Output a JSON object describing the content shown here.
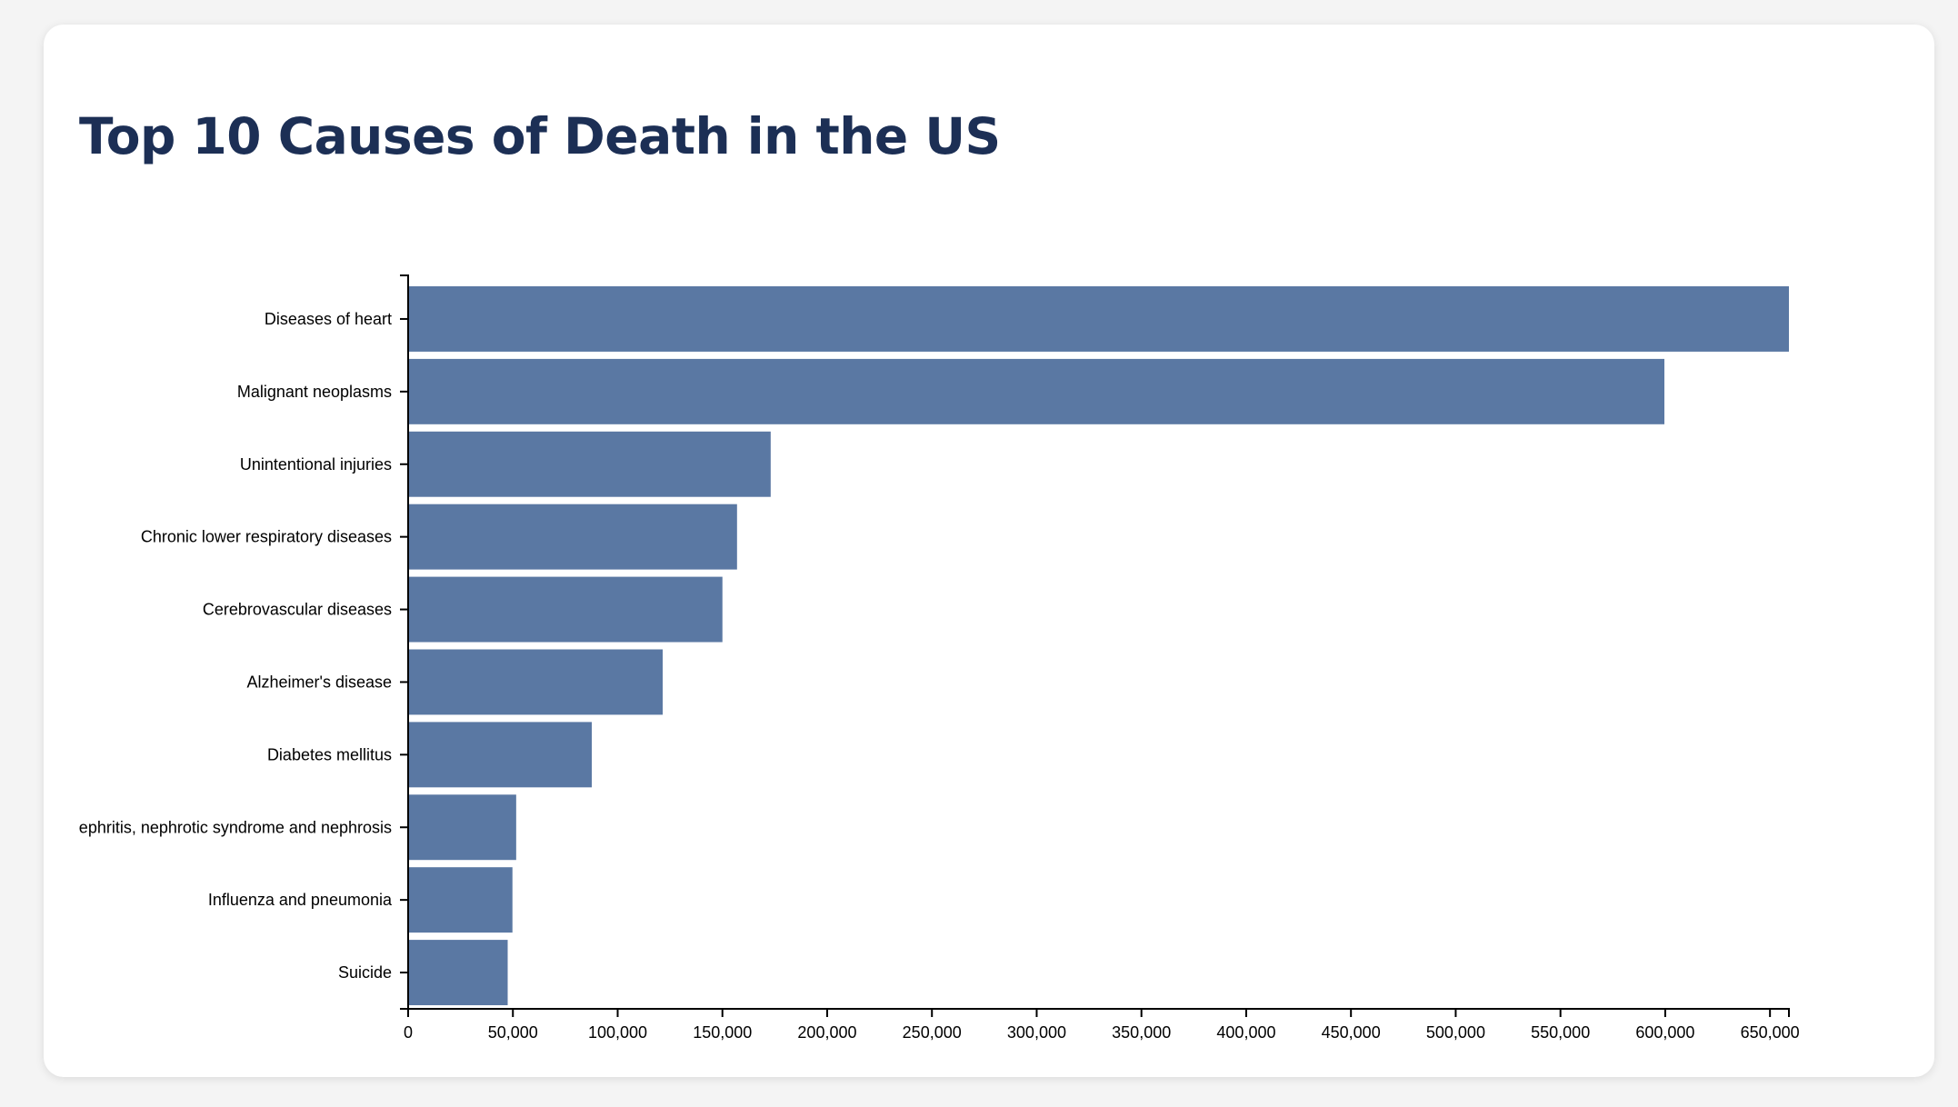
{
  "page": {
    "title": "Top 10 Causes of Death in the US"
  },
  "colors": {
    "bar": "#5a78a3",
    "title": "#1c2f55",
    "axis": "#000000"
  },
  "chart_data": {
    "type": "bar",
    "orientation": "horizontal",
    "title": "Top 10 Causes of Death in the US",
    "xlabel": "",
    "ylabel": "",
    "categories": [
      "Diseases of heart",
      "Malignant neoplasms",
      "Unintentional injuries",
      "Chronic lower respiratory diseases",
      "Cerebrovascular diseases",
      "Alzheimer's disease",
      "Diabetes mellitus",
      "Nephritis, nephrotic syndrome and nephrosis",
      "Influenza and pneumonia",
      "Suicide"
    ],
    "values": [
      659041,
      599601,
      173040,
      156979,
      150005,
      121499,
      87647,
      51565,
      49783,
      47511
    ],
    "xlim": [
      0,
      659041
    ],
    "x_ticks": [
      0,
      50000,
      100000,
      150000,
      200000,
      250000,
      300000,
      350000,
      400000,
      450000,
      500000,
      550000,
      600000,
      650000
    ],
    "x_tick_labels": [
      "0",
      "50,000",
      "100,000",
      "150,000",
      "200,000",
      "250,000",
      "300,000",
      "350,000",
      "400,000",
      "450,000",
      "500,000",
      "550,000",
      "600,000",
      "650,000"
    ],
    "grid": false,
    "legend": "none"
  }
}
